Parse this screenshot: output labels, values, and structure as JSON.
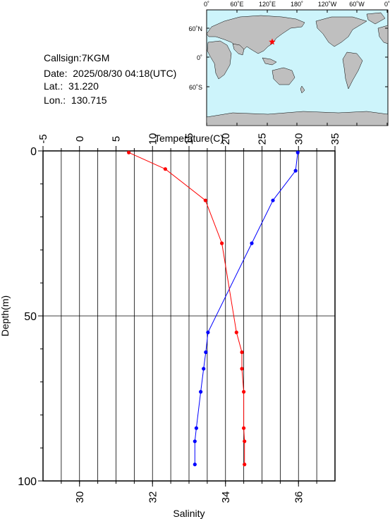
{
  "station": {
    "callsign_label": "Callsign:",
    "callsign": "7KGM",
    "date_label": "Date:",
    "date": "2025/08/30 04:18(UTC)",
    "lat_label": "Lat.:",
    "lat": "31.220",
    "lon_label": "Lon.:",
    "lon": "130.715"
  },
  "map": {
    "top_tick_labels": [
      "0˚",
      "60˚E",
      "120˚E",
      "180˚",
      "120˚W",
      "60˚W",
      "0˚"
    ],
    "lat_tick_labels": [
      "60˚N",
      "0˚",
      "60˚S"
    ],
    "ocean_color": "#cdf4fb",
    "land_color": "#bfbfbf",
    "marker_color": "#ff0000",
    "marker_icon": "star-icon"
  },
  "chart_data": {
    "type": "line",
    "xlabel_top": "Temperature(C)",
    "xlabel_bottom": "Salinity",
    "ylabel": "Depth(m)",
    "temperature_ticks": [
      "-5",
      "0",
      "5",
      "10",
      "15",
      "20",
      "25",
      "30",
      "35"
    ],
    "salinity_ticks": [
      "30",
      "32",
      "34",
      "36"
    ],
    "depth_ticks": [
      "0",
      "50",
      "100"
    ],
    "temperature_range": [
      -5,
      35
    ],
    "salinity_range": [
      29,
      37
    ],
    "depth_range": [
      0,
      100
    ],
    "grid": true,
    "series": [
      {
        "axis": "temperature",
        "color": "#0000ff",
        "points": [
          [
            29.9,
            0.5
          ],
          [
            29.6,
            6
          ],
          [
            26.5,
            15
          ],
          [
            23.6,
            28
          ],
          [
            17.6,
            55
          ],
          [
            17.3,
            61
          ],
          [
            17.0,
            66
          ],
          [
            16.6,
            73
          ],
          [
            16.0,
            84
          ],
          [
            15.8,
            88
          ],
          [
            15.8,
            95
          ]
        ]
      },
      {
        "axis": "salinity",
        "color": "#ff0000",
        "points": [
          [
            31.35,
            0.5
          ],
          [
            32.35,
            5.5
          ],
          [
            33.45,
            15
          ],
          [
            33.9,
            28
          ],
          [
            34.3,
            55
          ],
          [
            34.45,
            61
          ],
          [
            34.45,
            66
          ],
          [
            34.5,
            73
          ],
          [
            34.5,
            84
          ],
          [
            34.52,
            88
          ],
          [
            34.52,
            95
          ]
        ]
      }
    ]
  }
}
